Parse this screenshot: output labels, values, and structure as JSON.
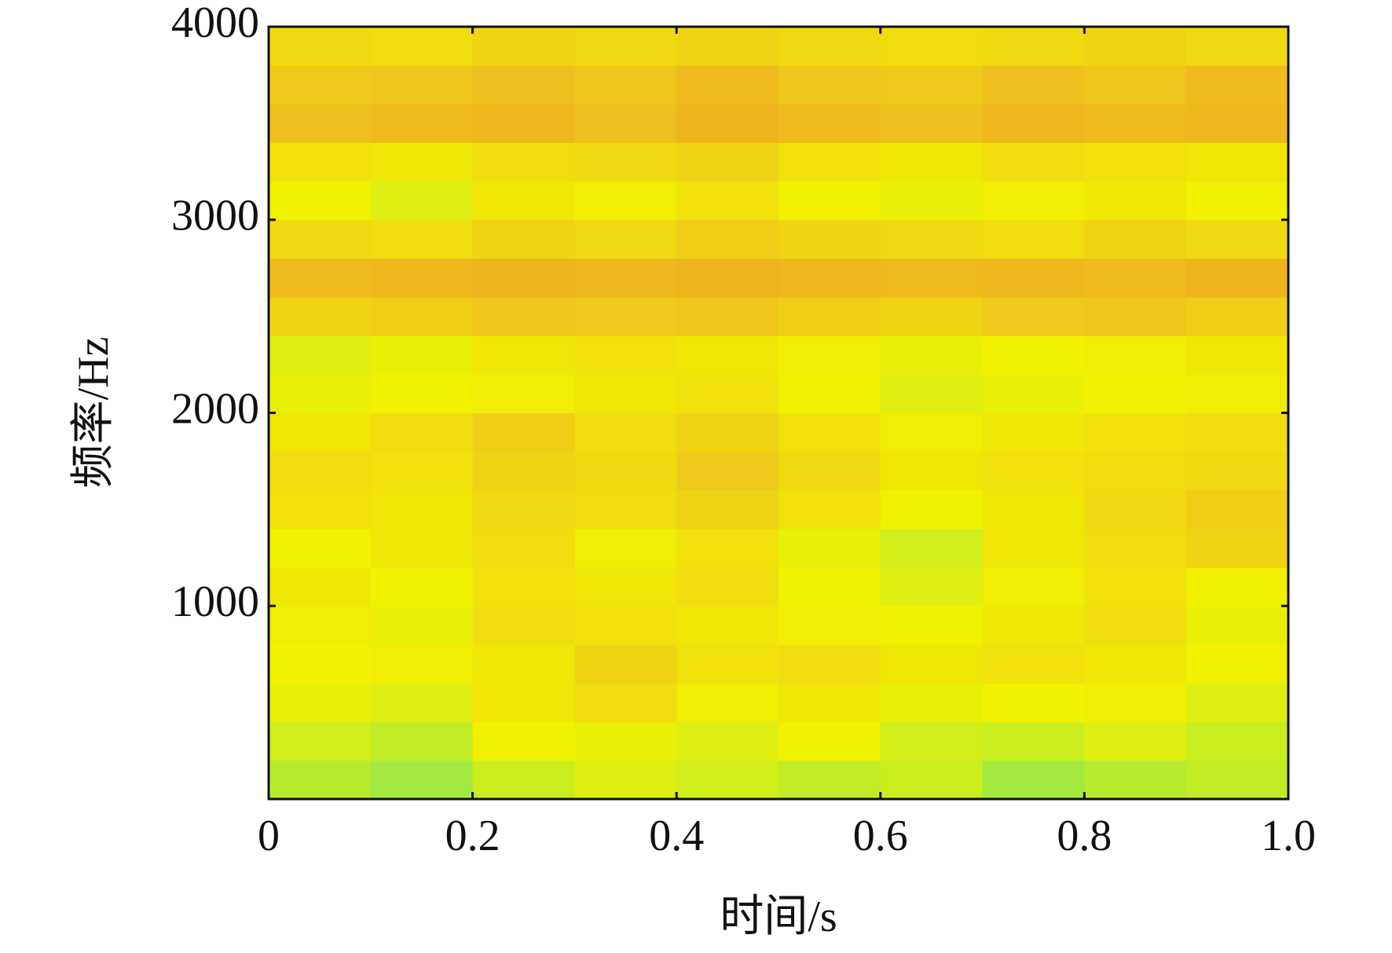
{
  "chart_data": {
    "type": "heatmap",
    "xlabel": "时间/s",
    "ylabel": "频率/Hz",
    "xlim": [
      0,
      1
    ],
    "xticks": [
      0,
      0.2,
      0.4,
      0.6,
      0.8,
      {
        "value": 1,
        "label": "1.0"
      }
    ],
    "ylim": [
      0,
      4000
    ],
    "yticks": [
      1000,
      2000,
      3000,
      4000
    ],
    "zlim": [
      0,
      100
    ],
    "colormap": [
      "#30d8b0",
      "#90e850",
      "#f0f000",
      "#f0c020",
      "#e89818"
    ],
    "z": [
      [
        35,
        30,
        40,
        45,
        42,
        38,
        40,
        30,
        35,
        38
      ],
      [
        42,
        38,
        50,
        48,
        45,
        50,
        42,
        40,
        45,
        40
      ],
      [
        48,
        45,
        55,
        60,
        52,
        55,
        48,
        50,
        52,
        45
      ],
      [
        50,
        52,
        55,
        65,
        58,
        60,
        55,
        58,
        55,
        50
      ],
      [
        52,
        48,
        60,
        58,
        55,
        52,
        50,
        55,
        60,
        48
      ],
      [
        55,
        50,
        58,
        55,
        60,
        50,
        45,
        52,
        58,
        50
      ],
      [
        50,
        55,
        60,
        52,
        58,
        48,
        42,
        55,
        60,
        65
      ],
      [
        58,
        55,
        62,
        60,
        65,
        58,
        50,
        55,
        62,
        68
      ],
      [
        60,
        58,
        65,
        62,
        70,
        62,
        55,
        58,
        60,
        62
      ],
      [
        55,
        60,
        68,
        60,
        65,
        58,
        52,
        55,
        58,
        60
      ],
      [
        48,
        50,
        52,
        55,
        58,
        50,
        45,
        48,
        50,
        52
      ],
      [
        45,
        48,
        55,
        58,
        55,
        52,
        48,
        50,
        52,
        55
      ],
      [
        65,
        68,
        72,
        70,
        72,
        68,
        65,
        70,
        72,
        68
      ],
      [
        78,
        80,
        82,
        80,
        82,
        80,
        78,
        80,
        78,
        82
      ],
      [
        62,
        60,
        65,
        62,
        68,
        65,
        62,
        60,
        65,
        62
      ],
      [
        50,
        45,
        55,
        52,
        58,
        50,
        48,
        52,
        55,
        50
      ],
      [
        58,
        55,
        60,
        62,
        65,
        58,
        55,
        60,
        58,
        55
      ],
      [
        75,
        78,
        80,
        75,
        82,
        78,
        75,
        80,
        78,
        80
      ],
      [
        70,
        72,
        75,
        72,
        78,
        72,
        70,
        75,
        72,
        78
      ],
      [
        62,
        60,
        65,
        62,
        65,
        62,
        60,
        62,
        65,
        62
      ]
    ]
  }
}
